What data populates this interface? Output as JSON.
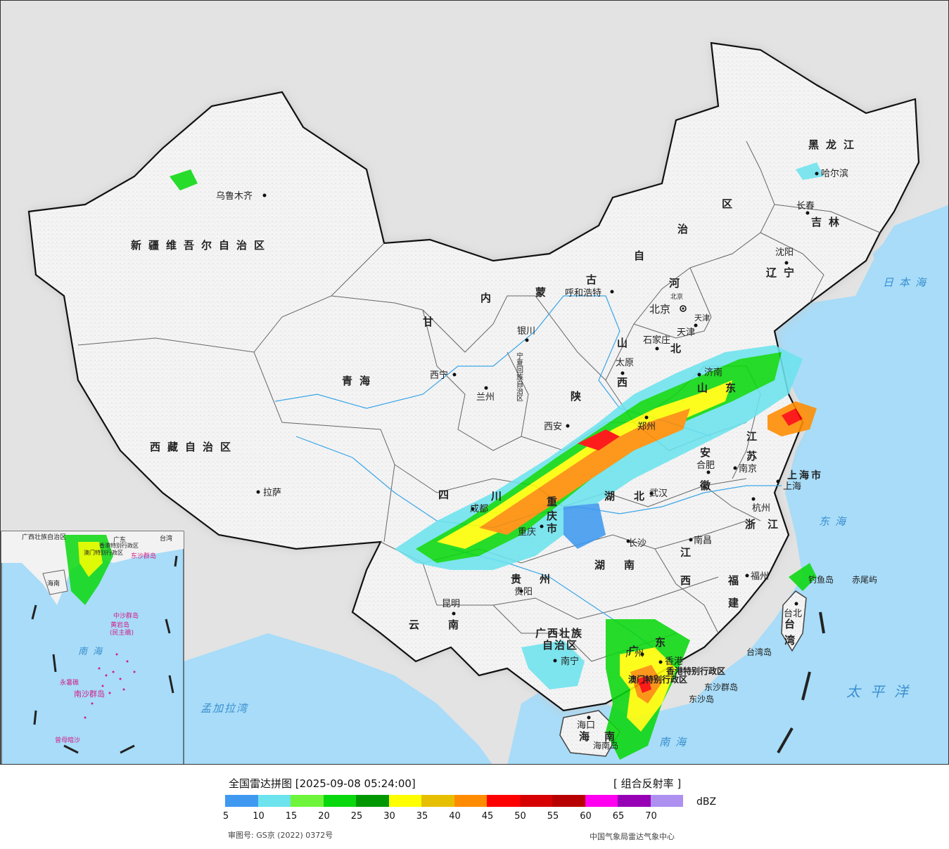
{
  "legend": {
    "title": "全国雷达拼图 [2025-09-08 05:24:00]",
    "product": "[ 组合反射率 ]",
    "unit": "dBZ",
    "ticks": [
      "5",
      "10",
      "15",
      "20",
      "25",
      "30",
      "35",
      "40",
      "45",
      "50",
      "55",
      "60",
      "65",
      "70"
    ],
    "colors": [
      "#3f99f0",
      "#6de3ee",
      "#6ef53b",
      "#0ad80e",
      "#009700",
      "#ffff00",
      "#e6c000",
      "#ff8c00",
      "#ff0000",
      "#d70000",
      "#b80000",
      "#ff00f0",
      "#9800b6",
      "#ad90f0"
    ],
    "review_no": "审图号: GS京 (2022) 0372号",
    "source": "中国气象局雷达气象中心"
  },
  "map": {
    "provinces": [
      "新疆维吾尔自治区",
      "西藏自治区",
      "青海",
      "甘",
      "内",
      "蒙",
      "古",
      "自",
      "治",
      "区",
      "黑龙江",
      "吉林",
      "辽宁",
      "河",
      "北",
      "山",
      "西",
      "陕",
      "四",
      "川",
      "重",
      "庆",
      "市",
      "湖",
      "北",
      "湖",
      "南",
      "江",
      "西",
      "贵",
      "州",
      "云",
      "南",
      "广西壮族",
      "自治区",
      "广",
      "东",
      "海",
      "南",
      "福",
      "建",
      "浙",
      "江",
      "江",
      "苏",
      "安",
      "徽",
      "山",
      "东",
      "台",
      "湾",
      "宁夏回族自治区",
      "天津",
      "北京",
      "上海市",
      "香港特别行政区",
      "澳门特别行政区"
    ],
    "cities": [
      "乌鲁木齐",
      "拉萨",
      "西宁",
      "兰州",
      "银川",
      "呼和浩特",
      "北京",
      "天津",
      "石家庄",
      "太原",
      "济南",
      "郑州",
      "西安",
      "成都",
      "重庆",
      "武汉",
      "长沙",
      "南昌",
      "合肥",
      "南京",
      "上海",
      "杭州",
      "福州",
      "台北",
      "贵阳",
      "昆明",
      "南宁",
      "广州",
      "香港",
      "海口",
      "哈尔滨",
      "长春",
      "沈阳"
    ],
    "islands": [
      "钓鱼岛",
      "赤尾屿",
      "台湾岛",
      "东沙群岛",
      "东沙岛",
      "海南岛"
    ],
    "seas": [
      "日本海",
      "东海",
      "太平洋",
      "南海",
      "孟加拉湾"
    ],
    "inset": {
      "sea": "南海",
      "islands": [
        "东沙群岛",
        "中沙群岛",
        "黄岩岛",
        "(民主礁)",
        "永暑礁",
        "南沙群岛",
        "曾母暗沙"
      ],
      "provinces": [
        "广西壮族自治区",
        "广东",
        "海南",
        "台湾",
        "香港特别行政区",
        "澳门特别行政区"
      ]
    }
  }
}
